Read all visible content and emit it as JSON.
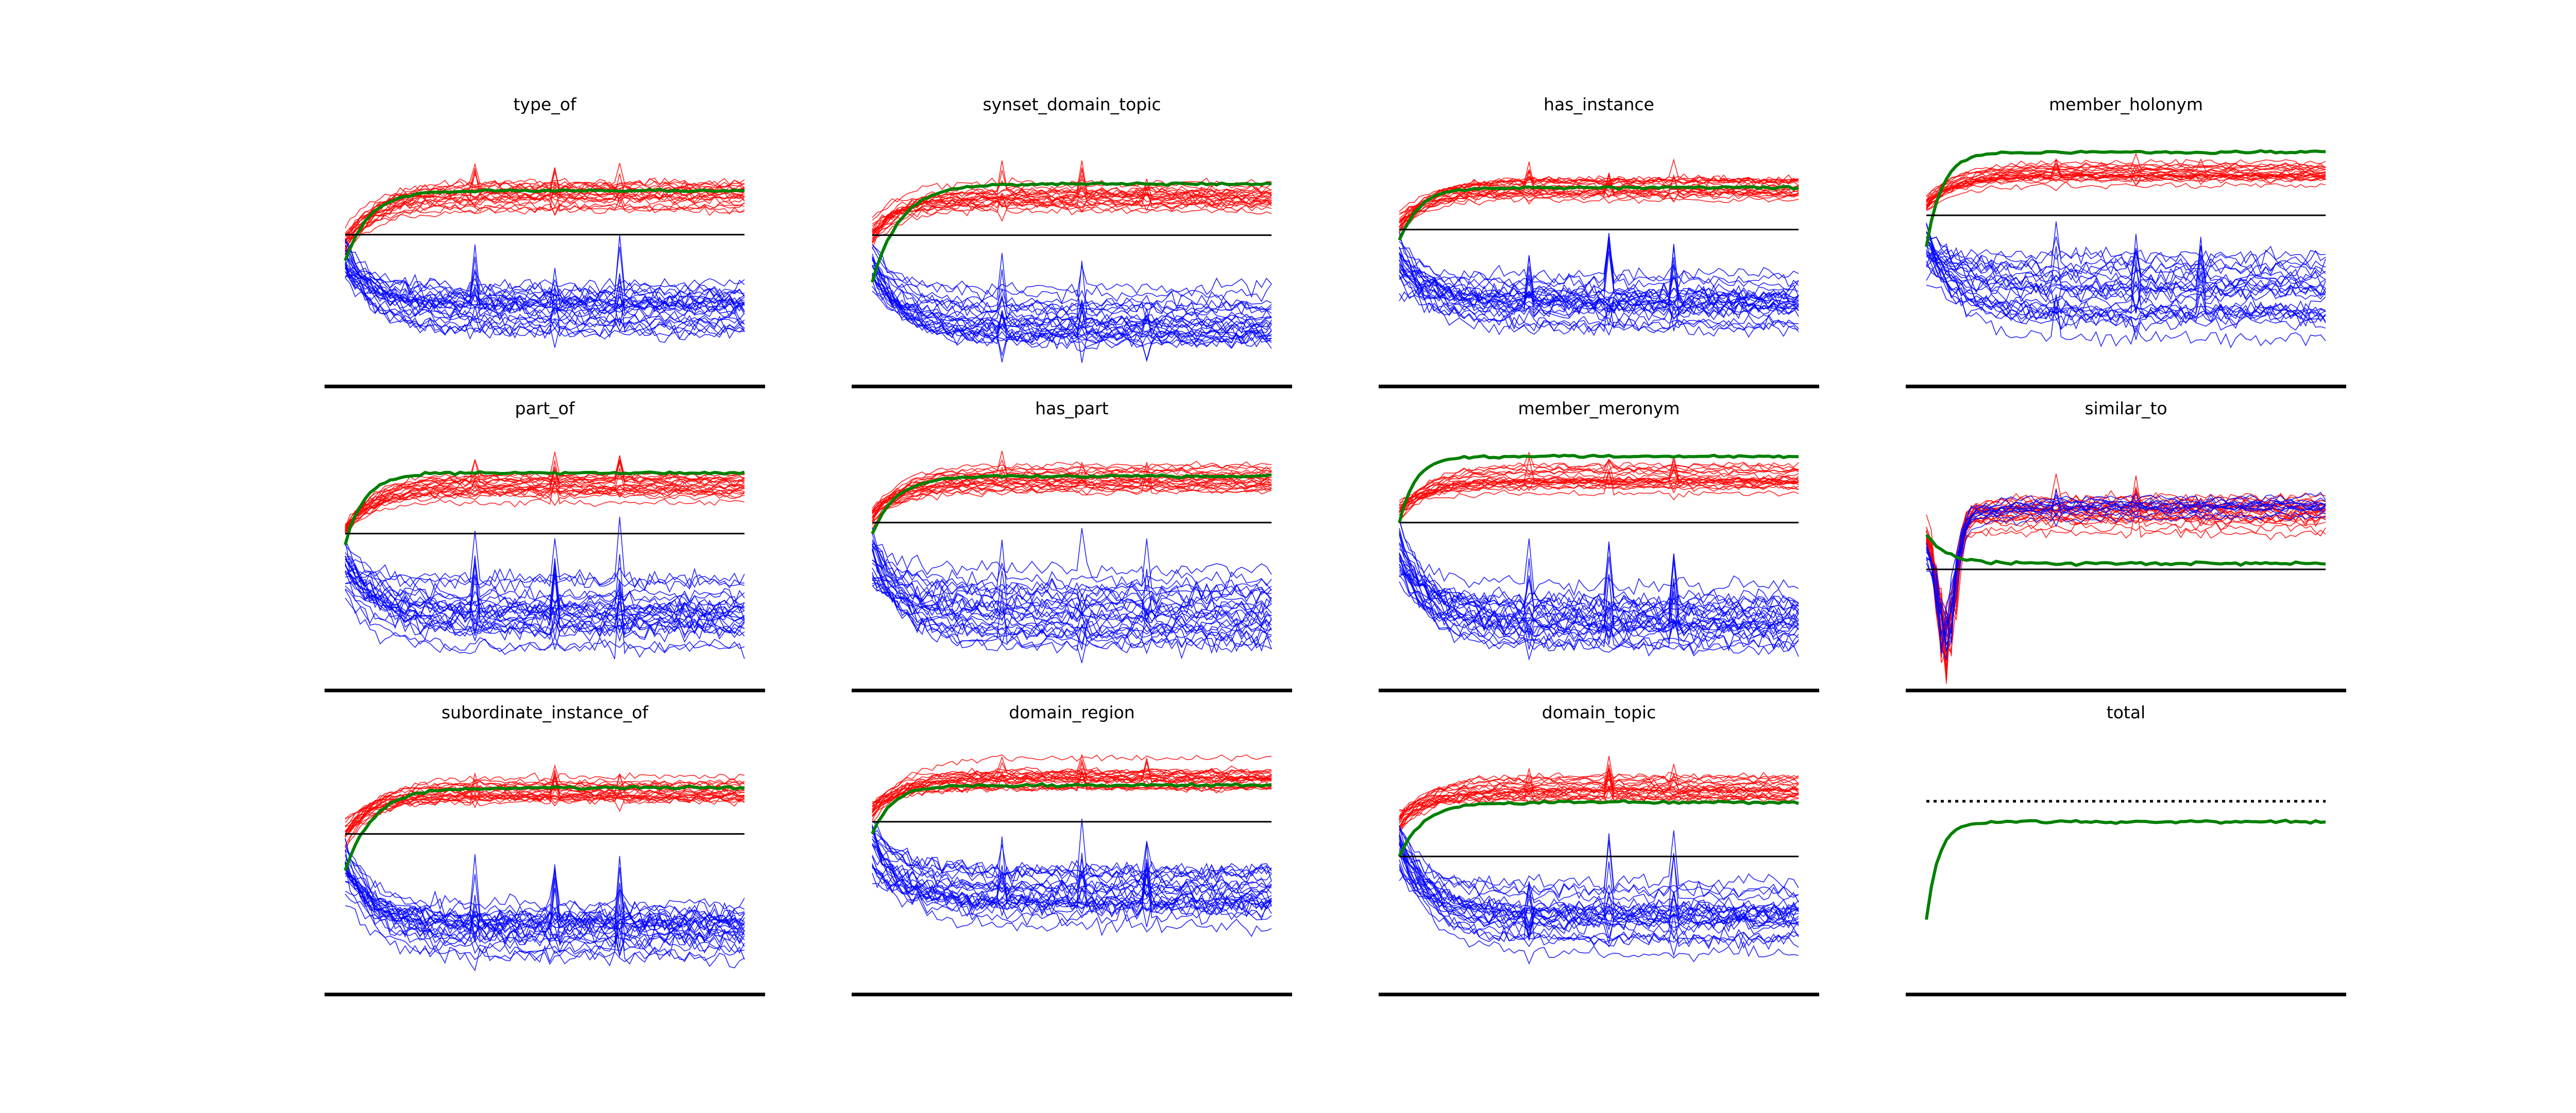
{
  "figure": {
    "rows": 3,
    "columns": 4,
    "colors": {
      "red": "#ff0000",
      "blue": "#0000ff",
      "green": "#008000",
      "black": "#000000",
      "background": "#ffffff"
    }
  },
  "chart_data": [
    {
      "type": "line",
      "title": "type_of",
      "x": [
        0,
        80
      ],
      "series": [
        {
          "color": "red",
          "count": 22,
          "start": -0.1,
          "end": 0.45,
          "spread": 0.35
        },
        {
          "color": "blue",
          "count": 26,
          "start": -0.3,
          "end": -0.9,
          "spread": 0.6
        },
        {
          "color": "green",
          "start": -0.3,
          "end": 0.5,
          "rise": 12
        },
        {
          "color": "black",
          "value": 0
        }
      ],
      "ylim": [
        -1.7,
        1.0
      ]
    },
    {
      "type": "line",
      "title": "synset_domain_topic",
      "x": [
        0,
        80
      ],
      "series": [
        {
          "color": "red",
          "count": 22,
          "start": 0.0,
          "end": 0.4,
          "spread": 0.3
        },
        {
          "color": "blue",
          "count": 26,
          "start": -0.3,
          "end": -0.9,
          "spread": 0.55
        },
        {
          "color": "green",
          "start": -0.5,
          "end": 0.55,
          "rise": 14
        },
        {
          "color": "black",
          "value": 0
        }
      ],
      "ylim": [
        -1.6,
        0.95
      ]
    },
    {
      "type": "line",
      "title": "has_instance",
      "x": [
        0,
        80
      ],
      "series": [
        {
          "color": "red",
          "count": 22,
          "start": 0.05,
          "end": 0.4,
          "spread": 0.22
        },
        {
          "color": "blue",
          "count": 26,
          "start": -0.3,
          "end": -0.7,
          "spread": 0.5
        },
        {
          "color": "green",
          "start": -0.1,
          "end": 0.38,
          "rise": 10
        },
        {
          "color": "black",
          "value": 0
        }
      ],
      "ylim": [
        -1.4,
        0.75
      ]
    },
    {
      "type": "line",
      "title": "member_holonym",
      "x": [
        0,
        80
      ],
      "series": [
        {
          "color": "red",
          "count": 22,
          "start": 0.1,
          "end": 0.4,
          "spread": 0.18
        },
        {
          "color": "blue",
          "count": 26,
          "start": -0.3,
          "end": -0.8,
          "spread": 0.55
        },
        {
          "color": "green",
          "start": -0.3,
          "end": 0.6,
          "rise": 8
        },
        {
          "color": "black",
          "value": 0
        }
      ],
      "ylim": [
        -1.6,
        0.65
      ]
    },
    {
      "type": "line",
      "title": "part_of",
      "x": [
        0,
        80
      ],
      "series": [
        {
          "color": "red",
          "count": 22,
          "start": 0.05,
          "end": 0.45,
          "spread": 0.22
        },
        {
          "color": "blue",
          "count": 26,
          "start": -0.3,
          "end": -0.75,
          "spread": 0.55
        },
        {
          "color": "green",
          "start": -0.1,
          "end": 0.55,
          "rise": 10
        },
        {
          "color": "black",
          "value": 0
        }
      ],
      "ylim": [
        -1.4,
        0.75
      ]
    },
    {
      "type": "line",
      "title": "has_part",
      "x": [
        0,
        80
      ],
      "series": [
        {
          "color": "red",
          "count": 22,
          "start": 0.05,
          "end": 0.38,
          "spread": 0.2
        },
        {
          "color": "blue",
          "count": 26,
          "start": -0.3,
          "end": -0.8,
          "spread": 0.55
        },
        {
          "color": "green",
          "start": -0.1,
          "end": 0.42,
          "rise": 12
        },
        {
          "color": "black",
          "value": 0
        }
      ],
      "ylim": [
        -1.5,
        0.65
      ]
    },
    {
      "type": "line",
      "title": "member_meronym",
      "x": [
        0,
        80
      ],
      "series": [
        {
          "color": "red",
          "count": 22,
          "start": 0.1,
          "end": 0.4,
          "spread": 0.2
        },
        {
          "color": "blue",
          "count": 26,
          "start": -0.3,
          "end": -0.9,
          "spread": 0.55
        },
        {
          "color": "green",
          "start": 0.0,
          "end": 0.6,
          "rise": 8
        },
        {
          "color": "black",
          "value": 0
        }
      ],
      "ylim": [
        -1.5,
        0.65
      ]
    },
    {
      "type": "line",
      "title": "similar_to",
      "x": [
        0,
        80
      ],
      "series": [
        {
          "color": "red",
          "count": 22,
          "start": 0.4,
          "end": 0.5,
          "spread": 0.3,
          "dip": -1.2
        },
        {
          "color": "blue",
          "count": 12,
          "start": 0.2,
          "end": 0.55,
          "spread": 0.25,
          "dip": -1.0
        },
        {
          "color": "green",
          "start": 0.3,
          "end": 0.05,
          "rise": 10
        },
        {
          "color": "black",
          "value": 0
        }
      ],
      "ylim": [
        -1.0,
        1.0
      ]
    },
    {
      "type": "line",
      "title": "subordinate_instance_of",
      "x": [
        0,
        80
      ],
      "series": [
        {
          "color": "red",
          "count": 22,
          "start": 0.0,
          "end": 0.35,
          "spread": 0.2
        },
        {
          "color": "blue",
          "count": 26,
          "start": -0.3,
          "end": -0.75,
          "spread": 0.5
        },
        {
          "color": "green",
          "start": -0.3,
          "end": 0.38,
          "rise": 14
        },
        {
          "color": "black",
          "value": 0
        }
      ],
      "ylim": [
        -1.3,
        0.65
      ]
    },
    {
      "type": "line",
      "title": "domain_region",
      "x": [
        0,
        80
      ],
      "series": [
        {
          "color": "red",
          "count": 22,
          "start": 0.1,
          "end": 0.35,
          "spread": 0.2
        },
        {
          "color": "blue",
          "count": 26,
          "start": -0.2,
          "end": -0.6,
          "spread": 0.5
        },
        {
          "color": "green",
          "start": -0.1,
          "end": 0.3,
          "rise": 10
        },
        {
          "color": "black",
          "value": 0
        }
      ],
      "ylim": [
        -1.4,
        0.55
      ]
    },
    {
      "type": "line",
      "title": "domain_topic",
      "x": [
        0,
        80
      ],
      "series": [
        {
          "color": "red",
          "count": 22,
          "start": 0.25,
          "end": 0.5,
          "spread": 0.2
        },
        {
          "color": "blue",
          "count": 26,
          "start": 0.1,
          "end": -0.45,
          "spread": 0.4
        },
        {
          "color": "green",
          "start": 0.0,
          "end": 0.4,
          "rise": 12
        },
        {
          "color": "black",
          "value": 0
        }
      ],
      "ylim": [
        -1.0,
        0.75
      ]
    },
    {
      "type": "line",
      "title": "total",
      "x": [
        0,
        80
      ],
      "series": [
        {
          "color": "green",
          "start": -0.3,
          "end": 0.65,
          "rise": 6
        },
        {
          "color": "black",
          "value": 0.85,
          "style": "dotted"
        }
      ],
      "ylim": [
        -1.0,
        1.3
      ]
    }
  ]
}
